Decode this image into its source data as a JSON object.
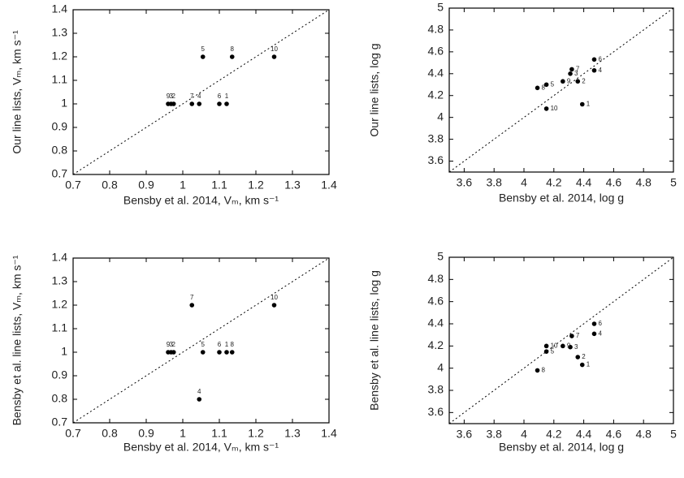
{
  "chart_data": [
    {
      "type": "scatter",
      "xlabel": "Bensby et al. 2014, Vₘ, km s⁻¹",
      "ylabel": "Our line lists, Vₘ, km s⁻¹",
      "x": [
        1.12,
        0.975,
        0.968,
        1.045,
        1.055,
        1.1,
        1.025,
        1.135,
        0.96,
        1.25
      ],
      "values": [
        1,
        1,
        1,
        1,
        1.2,
        1,
        1,
        1.2,
        1,
        1.2
      ],
      "point_labels": [
        "1",
        "2",
        "3",
        "4",
        "5",
        "6",
        "7",
        "8",
        "9",
        "10"
      ],
      "point_label_position": "top",
      "color": "#000000",
      "xlim": [
        0.7,
        1.4
      ],
      "xticks": [
        0.7,
        0.8,
        0.9,
        1,
        1.1,
        1.2,
        1.3,
        1.4
      ],
      "ylim": [
        0.7,
        1.4
      ],
      "yticks": [
        0.7,
        0.8,
        0.9,
        1,
        1.1,
        1.2,
        1.3,
        1.4
      ]
    },
    {
      "type": "scatter",
      "xlabel": "Bensby et al. 2014, log g",
      "ylabel": "Our line lists, log g",
      "x": [
        4.39,
        4.36,
        4.31,
        4.47,
        4.15,
        4.47,
        4.32,
        4.09,
        4.26,
        4.15
      ],
      "values": [
        4.12,
        4.33,
        4.4,
        4.43,
        4.3,
        4.53,
        4.44,
        4.27,
        4.33,
        4.08
      ],
      "point_labels": [
        "1",
        "2",
        "3",
        "4",
        "5",
        "6",
        "7",
        "8",
        "9",
        "10"
      ],
      "point_label_position": "right",
      "color": "#000000",
      "xlim": [
        3.5,
        5
      ],
      "xticks": [
        3.6,
        3.8,
        4,
        4.2,
        4.4,
        4.6,
        4.8,
        5
      ],
      "ylim": [
        3.5,
        5
      ],
      "yticks": [
        3.6,
        3.8,
        4,
        4.2,
        4.4,
        4.6,
        4.8,
        5
      ]
    },
    {
      "type": "scatter",
      "xlabel": "Bensby et al. 2014, Vₘ, km s⁻¹",
      "ylabel": "Bensby et al. line lists, Vₘ, km s⁻¹",
      "x": [
        1.12,
        0.975,
        0.968,
        1.045,
        1.055,
        1.1,
        1.025,
        1.135,
        0.96,
        1.25
      ],
      "values": [
        1,
        1,
        1,
        0.8,
        1,
        1,
        1.2,
        1,
        1,
        1.2
      ],
      "point_labels": [
        "1",
        "2",
        "3",
        "4",
        "5",
        "6",
        "7",
        "8",
        "9",
        "10"
      ],
      "point_label_position": "top",
      "color": "#000000",
      "xlim": [
        0.7,
        1.4
      ],
      "xticks": [
        0.7,
        0.8,
        0.9,
        1,
        1.1,
        1.2,
        1.3,
        1.4
      ],
      "ylim": [
        0.7,
        1.4
      ],
      "yticks": [
        0.7,
        0.8,
        0.9,
        1,
        1.1,
        1.2,
        1.3,
        1.4
      ]
    },
    {
      "type": "scatter",
      "xlabel": "Bensby et al. 2014, log g",
      "ylabel": "Bensby et al. line lists, log g",
      "x": [
        4.39,
        4.36,
        4.31,
        4.47,
        4.15,
        4.47,
        4.32,
        4.09,
        4.26,
        4.15
      ],
      "values": [
        4.03,
        4.1,
        4.19,
        4.31,
        4.15,
        4.4,
        4.29,
        3.98,
        4.2,
        4.2
      ],
      "point_labels": [
        "1",
        "2",
        "3",
        "4",
        "5",
        "6",
        "7",
        "8",
        "9",
        "10"
      ],
      "point_label_position": "right",
      "color": "#000000",
      "xlim": [
        3.5,
        5
      ],
      "xticks": [
        3.6,
        3.8,
        4,
        4.2,
        4.4,
        4.6,
        4.8,
        5
      ],
      "ylim": [
        3.5,
        5
      ],
      "yticks": [
        3.6,
        3.8,
        4,
        4.2,
        4.4,
        4.6,
        4.8,
        5
      ]
    }
  ]
}
